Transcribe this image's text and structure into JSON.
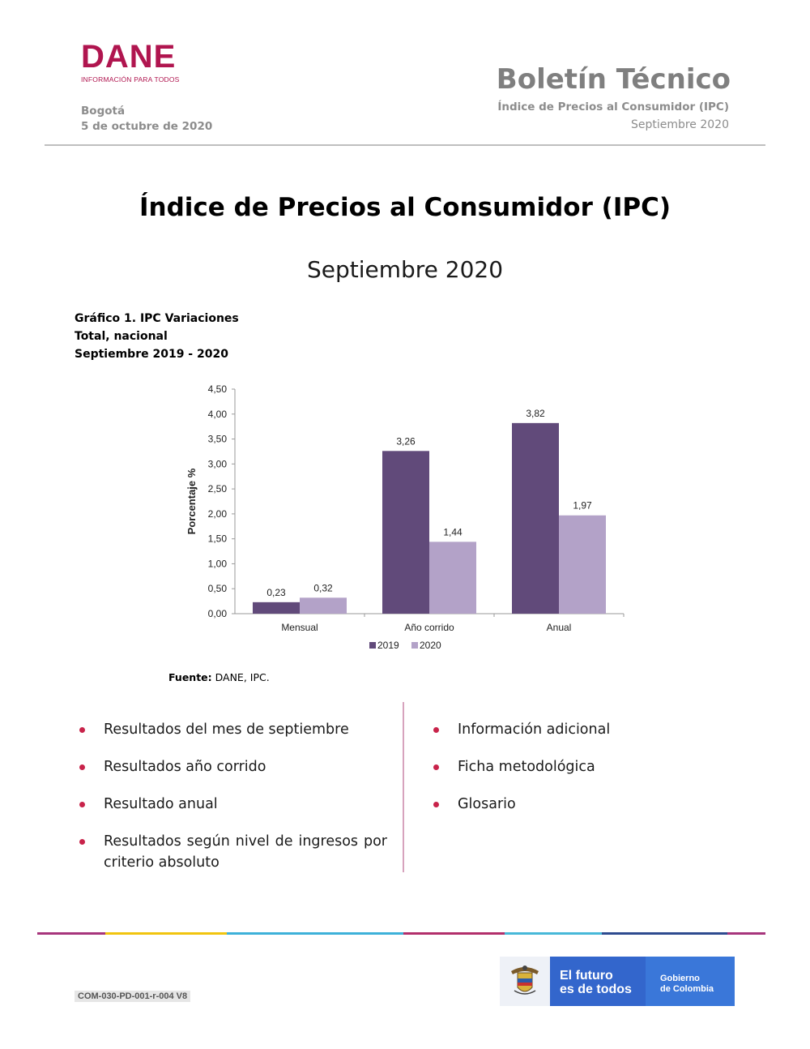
{
  "header": {
    "logo_text": "DANE",
    "logo_tagline": "INFORMACIÓN PARA TODOS",
    "city": "Bogotá",
    "date": "5 de octubre de 2020",
    "bulletin_title": "Boletín Técnico",
    "bulletin_subtitle": "Índice de Precios al Consumidor (IPC)",
    "bulletin_period": "Septiembre 2020"
  },
  "title": {
    "main": "Índice de Precios al Consumidor (IPC)",
    "sub": "Septiembre 2020"
  },
  "chart_caption": {
    "line1": "Gráfico 1. IPC Variaciones",
    "line2": "Total, nacional",
    "line3": "Septiembre 2019 - 2020"
  },
  "chart_data": {
    "type": "bar",
    "categories": [
      "Mensual",
      "Año corrido",
      "Anual"
    ],
    "series": [
      {
        "name": "2019",
        "values": [
          0.23,
          3.26,
          3.82
        ],
        "color": "#614a7a"
      },
      {
        "name": "2020",
        "values": [
          0.32,
          1.44,
          1.97
        ],
        "color": "#b3a2c8"
      }
    ],
    "data_labels": [
      [
        "0,23",
        "3,26",
        "3,82"
      ],
      [
        "0,32",
        "1,44",
        "1,97"
      ]
    ],
    "ylabel": "Porcentaje %",
    "ylim": [
      0,
      4.5
    ],
    "yticks": [
      "0,00",
      "0,50",
      "1,00",
      "1,50",
      "2,00",
      "2,50",
      "3,00",
      "3,50",
      "4,00",
      "4,50"
    ],
    "legend_position": "bottom",
    "grid": false
  },
  "source": {
    "label": "Fuente:",
    "text": " DANE, IPC."
  },
  "contents": {
    "left": [
      "Resultados del mes de septiembre",
      "Resultados año corrido",
      "Resultado anual",
      "Resultados según nivel de ingresos por criterio absoluto"
    ],
    "right": [
      "Información adicional",
      "Ficha metodológica",
      "Glosario"
    ]
  },
  "footer": {
    "code": "COM-030-PD-001-r-004 V8",
    "gov_line1": "El futuro",
    "gov_line2": "es de todos",
    "gov_line3": "Gobierno",
    "gov_line4": "de Colombia",
    "bar_colors": [
      "#a7357c",
      "#f1c40f",
      "#3db1d9",
      "#b22f6b",
      "#47b8d8",
      "#2e4b8f",
      "#a7357c"
    ]
  }
}
